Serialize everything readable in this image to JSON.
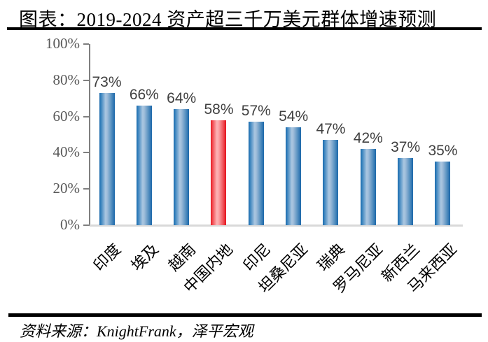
{
  "header": {
    "title": "图表：2019-2024 资产超三千万美元群体增速预测"
  },
  "footer": {
    "source": "资料来源：KnightFrank，泽平宏观"
  },
  "chart_data": {
    "type": "bar",
    "title": "图表：2019-2024 资产超三千万美元群体增速预测",
    "categories": [
      "印度",
      "埃及",
      "越南",
      "中国内地",
      "印尼",
      "坦桑尼亚",
      "瑞典",
      "罗马尼亚",
      "新西兰",
      "马来西亚"
    ],
    "values": [
      73,
      66,
      64,
      58,
      57,
      54,
      47,
      42,
      37,
      35
    ],
    "data_labels": [
      "73%",
      "66%",
      "64%",
      "58%",
      "57%",
      "54%",
      "47%",
      "42%",
      "37%",
      "35%"
    ],
    "highlight_index": 3,
    "highlight_category": "中国内地",
    "xlabel": "",
    "ylabel": "",
    "ylim": [
      0,
      100
    ],
    "yticks": [
      "0%",
      "20%",
      "40%",
      "60%",
      "80%",
      "100%"
    ],
    "ytick_values": [
      0,
      20,
      40,
      60,
      80,
      100
    ],
    "grid": false,
    "legend": "none",
    "source": "资料来源：KnightFrank，泽平宏观",
    "colors": {
      "bar": "#2272b4",
      "bar_highlight": "#ee1c25",
      "value_label": "#404040",
      "axis_label": "#595959",
      "axis_line": "#7f7f7f",
      "baseline": "#d9d9d9"
    }
  }
}
